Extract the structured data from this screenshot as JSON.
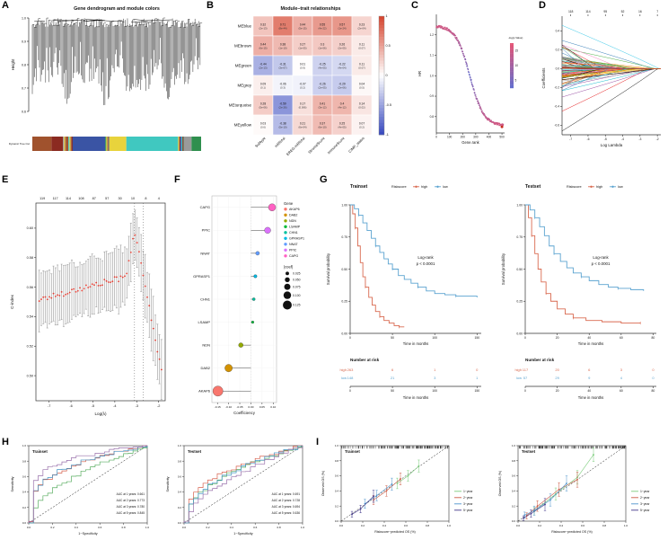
{
  "panel_letters": [
    "A",
    "B",
    "C",
    "D",
    "E",
    "F",
    "G",
    "H",
    "I"
  ],
  "chart_data": [
    {
      "panel": "A",
      "type": "dendrogram",
      "title": "Gene dendrogram and module colors",
      "ylabel": "Height",
      "yticks": [
        "0.6",
        "0.7",
        "0.8",
        "0.9",
        "1.0"
      ],
      "ylim": [
        0.6,
        1.0
      ],
      "cut_label": "Dynamic Tree Cut",
      "module_segments": [
        {
          "color": "#a0522d",
          "w": 10
        },
        {
          "color": "#8b2a21",
          "w": 6
        },
        {
          "color": "speckle",
          "w": 5
        },
        {
          "color": "#3a54a4",
          "w": 17
        },
        {
          "color": "speckle",
          "w": 2
        },
        {
          "color": "#e8d33c",
          "w": 9
        },
        {
          "color": "#40c8c0",
          "w": 27
        },
        {
          "color": "speckle",
          "w": 3
        },
        {
          "color": "#9a9a9a",
          "w": 4
        },
        {
          "color": "#2f8f4e",
          "w": 5
        }
      ],
      "speckle_palette": [
        "#a0522d",
        "#3a54a4",
        "#e8d33c",
        "#40c8c0",
        "#9a9a9a",
        "#2f8f4e",
        "#8b2a21"
      ]
    },
    {
      "panel": "B",
      "type": "heatmap",
      "title": "Module–trait relationships",
      "rows": [
        "MEblue",
        "MEbrown",
        "MEgreen",
        "MEgrey",
        "MEturquoise",
        "MEyellow"
      ],
      "cols": [
        "Subtype",
        "mRNAsi",
        "EREG-mRNAsi",
        "StromalScore",
        "ImmuneScore",
        "CIMP_status"
      ],
      "values": [
        [
          0.32,
          0.71,
          0.44,
          0.55,
          0.57,
          0.23
        ],
        [
          0.44,
          0.38,
          0.27,
          0.3,
          0.26,
          0.11
        ],
        [
          -0.44,
          -0.31,
          0.01,
          -0.25,
          -0.22,
          0.11
        ],
        [
          0.09,
          -0.06,
          -0.07,
          -0.26,
          -0.29,
          0.04
        ],
        [
          0.28,
          -0.59,
          0.17,
          0.41,
          0.4,
          0.14
        ],
        [
          0.03,
          -0.38,
          0.21,
          0.37,
          0.25,
          0.07
        ]
      ],
      "pvalues": [
        [
          "(2e-13)",
          "(8e-44)",
          "(5e-15)",
          "(4e-22)",
          "(1e-24)",
          "(2e-04)"
        ],
        [
          "(6e-15)",
          "(1e-10)",
          "(1e-05)",
          "(1e-06)",
          "(2e-05)",
          "(0.07)"
        ],
        [
          "(2e-13)",
          "(3e-07)",
          "(0.9)",
          "(4e-05)",
          "(4e-04)",
          "(0.07)"
        ],
        [
          "(0.1)",
          "(0.3)",
          "(0.2)",
          "(2e-05)",
          "(2e-06)",
          "(0.5)"
        ],
        [
          "(5e-06)",
          "(2e-26)",
          "(0.006)",
          "(3e-12)",
          "(4e-12)",
          "(0.02)"
        ],
        [
          "(0.6)",
          "(5e-10)",
          "(6e-04)",
          "(6e-10)",
          "(4e-05)",
          "(0.2)"
        ]
      ],
      "colorbar_ticks": [
        "1",
        "0.5",
        "0",
        "-0.5",
        "-1"
      ]
    },
    {
      "panel": "C",
      "type": "hr_scatter",
      "xlabel": "Gene.rank",
      "ylabel": "HR",
      "xticks": [
        0,
        100,
        200,
        300,
        400,
        500
      ],
      "yticks": [
        "0.8",
        "0.9",
        "1.0",
        "1.1",
        "1.2"
      ],
      "xlim": [
        0,
        520
      ],
      "ylim": [
        0.72,
        1.3
      ],
      "legend_title": "-log(p Value)",
      "legend_ticks": [
        "15",
        "10",
        "5"
      ],
      "n_points": 260,
      "outlier": {
        "x": 500,
        "y": 0.75
      }
    },
    {
      "panel": "D",
      "type": "lasso",
      "top_labels": [
        "118",
        "114",
        "95",
        "52",
        "16",
        "7"
      ],
      "xlabel": "Log Lambda",
      "ylabel": "Coefficients",
      "xticks": [
        -7,
        -6,
        -5,
        -4,
        -3,
        -2
      ],
      "yticks": [
        "-0.6",
        "-0.4",
        "-0.2",
        "0.0",
        "0.2",
        "0.4"
      ],
      "xlim": [
        -7.5,
        -1.8
      ],
      "ylim": [
        -0.7,
        0.5
      ],
      "n_lines": 85
    },
    {
      "panel": "E",
      "type": "cindex",
      "top_labels": [
        "119",
        "117",
        "114",
        "108",
        "87",
        "57",
        "30",
        "10",
        "8",
        "4"
      ],
      "xlabel": "Log(λ)",
      "ylabel": "C-index",
      "xticks": [
        -7,
        -6,
        -5,
        -4,
        -3,
        -2
      ],
      "yticks": [
        "0.50",
        "0.52",
        "0.54",
        "0.56",
        "0.58",
        "0.60"
      ],
      "xlim": [
        -7.6,
        -1.7
      ],
      "ylim": [
        0.483,
        0.617
      ],
      "vlines": [
        -3.1,
        -2.7
      ],
      "peak": {
        "x": -3.1,
        "y": 0.598
      }
    },
    {
      "panel": "F",
      "type": "lollipop",
      "xlabel": "Coefficiency",
      "genes": [
        "CAPG",
        "PPIC",
        "NNAT",
        "GPRASP1",
        "CHN1",
        "LSAMP",
        "NDN",
        "DAB2",
        "AKAP6"
      ],
      "coefs": [
        0.095,
        0.075,
        0.03,
        0.02,
        0.013,
        0.008,
        -0.045,
        -0.1,
        -0.148
      ],
      "legend_genes": [
        "AKAP6",
        "DAB2",
        "NDN",
        "LSAMP",
        "CHN1",
        "GPRASP1",
        "NNAT",
        "PPIC",
        "CAPG"
      ],
      "gene_colors": {
        "AKAP6": "#F8766D",
        "DAB2": "#D39200",
        "NDN": "#93AA00",
        "LSAMP": "#00BA38",
        "CHN1": "#00C19F",
        "GPRASP1": "#00B9E3",
        "NNAT": "#619CFF",
        "PPIC": "#DB72FB",
        "CAPG": "#FF61C3"
      },
      "xticks": [
        "-0.15",
        "-0.10",
        "-0.05",
        "0.00",
        "0.05",
        "0.10"
      ],
      "xtick_vals": [
        -0.15,
        -0.1,
        -0.05,
        0,
        0.05,
        0.1
      ],
      "xlim": [
        -0.175,
        0.115
      ],
      "legend_gene_title": "Gene",
      "legend_coef_title": "|coef|",
      "coef_size_labels": [
        "0.025",
        "0.050",
        "0.075",
        "0.100",
        "0.125"
      ],
      "coef_size_vals": [
        0.025,
        0.05,
        0.075,
        0.1,
        0.125
      ]
    },
    {
      "panel": "G",
      "type": "km_pair",
      "legend_title": "Riskscore",
      "groups": [
        {
          "name": "high",
          "color": "#D96A50"
        },
        {
          "name": "low",
          "color": "#5BA3D0"
        }
      ],
      "ylabel": "Survival probability",
      "yticks": [
        "0.00",
        "0.25",
        "0.50",
        "0.75",
        "1.00"
      ],
      "risk_title": "Number at risk",
      "plots": [
        {
          "title": "Trainset",
          "pval_lines": [
            "Log-rank",
            "p < 0.0001"
          ],
          "xlabel": "Time in months",
          "xticks": [
            0,
            50,
            100,
            150
          ],
          "xlim": [
            0,
            155
          ],
          "risk": {
            "high": [
              "263",
              "6",
              "1",
              "0"
            ],
            "low": [
              "148",
              "21",
              "3",
              "1"
            ]
          },
          "curves": {
            "high": [
              [
                0,
                1
              ],
              [
                3,
                0.93
              ],
              [
                6,
                0.82
              ],
              [
                9,
                0.68
              ],
              [
                12,
                0.55
              ],
              [
                15,
                0.44
              ],
              [
                18,
                0.36
              ],
              [
                22,
                0.28
              ],
              [
                26,
                0.22
              ],
              [
                30,
                0.17
              ],
              [
                35,
                0.13
              ],
              [
                40,
                0.1
              ],
              [
                46,
                0.08
              ],
              [
                52,
                0.06
              ],
              [
                58,
                0.05
              ],
              [
                64,
                0.05
              ]
            ],
            "low": [
              [
                0,
                1
              ],
              [
                5,
                0.97
              ],
              [
                10,
                0.92
              ],
              [
                15,
                0.86
              ],
              [
                20,
                0.8
              ],
              [
                25,
                0.74
              ],
              [
                30,
                0.68
              ],
              [
                35,
                0.63
              ],
              [
                40,
                0.58
              ],
              [
                45,
                0.54
              ],
              [
                50,
                0.5
              ],
              [
                57,
                0.45
              ],
              [
                64,
                0.42
              ],
              [
                72,
                0.39
              ],
              [
                80,
                0.36
              ],
              [
                90,
                0.33
              ],
              [
                100,
                0.31
              ],
              [
                112,
                0.3
              ],
              [
                125,
                0.29
              ],
              [
                150,
                0.28
              ]
            ]
          }
        },
        {
          "title": "Testset",
          "pval_lines": [
            "Log-rank",
            "p < 0.0001"
          ],
          "xlabel": "Time in months",
          "xticks": [
            0,
            20,
            40,
            60,
            80
          ],
          "xlim": [
            0,
            82
          ],
          "risk": {
            "high": [
              "117",
              "20",
              "6",
              "3",
              "0"
            ],
            "low": [
              "57",
              "29",
              "9",
              "4",
              "0"
            ]
          },
          "curves": {
            "high": [
              [
                0,
                1
              ],
              [
                2,
                0.9
              ],
              [
                4,
                0.76
              ],
              [
                6,
                0.62
              ],
              [
                8,
                0.5
              ],
              [
                10,
                0.4
              ],
              [
                13,
                0.31
              ],
              [
                16,
                0.25
              ],
              [
                20,
                0.19
              ],
              [
                25,
                0.15
              ],
              [
                30,
                0.12
              ],
              [
                38,
                0.1
              ],
              [
                48,
                0.09
              ],
              [
                60,
                0.08
              ],
              [
                72,
                0.08
              ]
            ],
            "low": [
              [
                0,
                1
              ],
              [
                3,
                0.96
              ],
              [
                6,
                0.9
              ],
              [
                9,
                0.83
              ],
              [
                12,
                0.76
              ],
              [
                15,
                0.68
              ],
              [
                18,
                0.62
              ],
              [
                22,
                0.56
              ],
              [
                26,
                0.51
              ],
              [
                30,
                0.47
              ],
              [
                35,
                0.44
              ],
              [
                40,
                0.41
              ],
              [
                46,
                0.38
              ],
              [
                52,
                0.36
              ],
              [
                58,
                0.35
              ],
              [
                66,
                0.34
              ],
              [
                74,
                0.33
              ]
            ]
          }
        }
      ]
    },
    {
      "panel": "H",
      "type": "roc_pair",
      "xlabel": "1−Specificity",
      "ylabel": "Sensitivity",
      "ticks": [
        "0.0",
        "0.2",
        "0.4",
        "0.6",
        "0.8",
        "1.0"
      ],
      "curve_colors": [
        "#5aae61",
        "#d6604d",
        "#4393c3",
        "#9970ab"
      ],
      "plots": [
        {
          "title": "Trainset",
          "aucs": [
            0.661,
            0.773,
            0.78,
            0.845
          ],
          "auc_lines": [
            "AUC at 1 years: 0.661",
            "AUC at 2 years: 0.773",
            "AUC at 3 years: 0.780",
            "AUC at 5 years: 0.845"
          ]
        },
        {
          "title": "Testset",
          "aucs": [
            0.691,
            0.728,
            0.694,
            0.636
          ],
          "auc_lines": [
            "AUC at 1 years: 0.691",
            "AUC at 2 years: 0.728",
            "AUC at 3 years: 0.694",
            "AUC at 5 years: 0.636"
          ]
        }
      ]
    },
    {
      "panel": "I",
      "type": "calib_pair",
      "xlabel": "Riskscore−predicted OS (%)",
      "ylabel": "Observed OS (%)",
      "ticks": [
        "0.0",
        "0.2",
        "0.4",
        "0.6",
        "0.8",
        "1.0"
      ],
      "legend": [
        {
          "label": "1−year",
          "color": "#7ccd7c"
        },
        {
          "label": "2−year",
          "color": "#cd5b45"
        },
        {
          "label": "3−year",
          "color": "#4f94cd"
        },
        {
          "label": "5−year",
          "color": "#43398b"
        }
      ],
      "plots": [
        {
          "title": "Trainset",
          "series": [
            {
              "name": "1−year",
              "points": [
                [
                  0.52,
                  0.5,
                  0.07
                ],
                [
                  0.62,
                  0.6,
                  0.07
                ],
                [
                  0.72,
                  0.73,
                  0.08
                ]
              ]
            },
            {
              "name": "2−year",
              "points": [
                [
                  0.3,
                  0.28,
                  0.06
                ],
                [
                  0.42,
                  0.4,
                  0.07
                ],
                [
                  0.55,
                  0.56,
                  0.08
                ]
              ]
            },
            {
              "name": "3−year",
              "points": [
                [
                  0.22,
                  0.23,
                  0.06
                ],
                [
                  0.33,
                  0.34,
                  0.07
                ],
                [
                  0.47,
                  0.49,
                  0.08
                ]
              ]
            },
            {
              "name": "5−year",
              "points": [
                [
                  0.1,
                  0.09,
                  0.04
                ],
                [
                  0.18,
                  0.16,
                  0.05
                ],
                [
                  0.3,
                  0.33,
                  0.08
                ]
              ]
            }
          ]
        },
        {
          "title": "Testset",
          "series": [
            {
              "name": "1−year",
              "points": [
                [
                  0.15,
                  0.13,
                  0.05
                ],
                [
                  0.35,
                  0.36,
                  0.08
                ],
                [
                  0.55,
                  0.58,
                  0.09
                ],
                [
                  0.7,
                  0.88,
                  0.09
                ]
              ]
            },
            {
              "name": "2−year",
              "points": [
                [
                  0.08,
                  0.07,
                  0.04
                ],
                [
                  0.18,
                  0.2,
                  0.07
                ],
                [
                  0.38,
                  0.42,
                  0.09
                ],
                [
                  0.55,
                  0.55,
                  0.1
                ]
              ]
            },
            {
              "name": "3−year",
              "points": [
                [
                  0.06,
                  0.08,
                  0.04
                ],
                [
                  0.15,
                  0.14,
                  0.06
                ],
                [
                  0.3,
                  0.28,
                  0.08
                ],
                [
                  0.45,
                  0.5,
                  0.1
                ]
              ]
            },
            {
              "name": "5−year",
              "points": [
                [
                  0.05,
                  0.04,
                  0.03
                ],
                [
                  0.12,
                  0.1,
                  0.05
                ],
                [
                  0.25,
                  0.22,
                  0.08
                ]
              ]
            }
          ]
        }
      ]
    }
  ]
}
